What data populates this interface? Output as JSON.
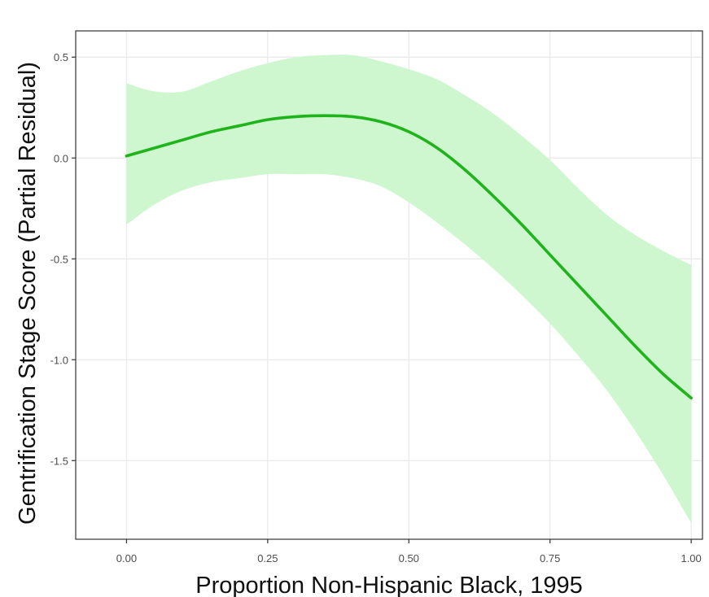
{
  "chart_data": {
    "type": "line",
    "xlabel": "Proportion Non-Hispanic Black, 1995",
    "ylabel": "Gentrification Stage Score (Partial Residual)",
    "xlim": [
      -0.09,
      1.02
    ],
    "ylim": [
      -1.89,
      0.63
    ],
    "x_ticks": [
      0.0,
      0.25,
      0.5,
      0.75,
      1.0
    ],
    "x_tick_labels": [
      "0.00",
      "0.25",
      "0.50",
      "0.75",
      "1.00"
    ],
    "y_ticks": [
      0.5,
      0.0,
      -0.5,
      -1.0,
      -1.5
    ],
    "y_tick_labels": [
      "0.5",
      "0.0",
      "-0.5",
      "-1.0",
      "-1.5"
    ],
    "grid": true,
    "legend": "none",
    "series": [
      {
        "x": [
          0.0,
          0.05,
          0.1,
          0.15,
          0.2,
          0.25,
          0.3,
          0.35,
          0.4,
          0.45,
          0.5,
          0.55,
          0.6,
          0.65,
          0.7,
          0.75,
          0.8,
          0.85,
          0.9,
          0.95,
          1.0
        ],
        "y": [
          0.01,
          0.05,
          0.09,
          0.13,
          0.16,
          0.19,
          0.205,
          0.21,
          0.205,
          0.18,
          0.13,
          0.05,
          -0.06,
          -0.19,
          -0.33,
          -0.48,
          -0.63,
          -0.78,
          -0.93,
          -1.07,
          -1.19
        ],
        "lower": [
          -0.33,
          -0.23,
          -0.16,
          -0.12,
          -0.1,
          -0.08,
          -0.08,
          -0.08,
          -0.1,
          -0.14,
          -0.22,
          -0.32,
          -0.43,
          -0.55,
          -0.68,
          -0.82,
          -0.98,
          -1.15,
          -1.35,
          -1.57,
          -1.81
        ],
        "upper": [
          0.37,
          0.33,
          0.33,
          0.38,
          0.43,
          0.47,
          0.5,
          0.51,
          0.51,
          0.48,
          0.44,
          0.39,
          0.31,
          0.22,
          0.11,
          -0.01,
          -0.15,
          -0.28,
          -0.38,
          -0.46,
          -0.53
        ]
      }
    ],
    "colors": {
      "line": "#1fb31c",
      "band": "#cff7cf",
      "grid": "#ebebeb",
      "panel_border": "#333333"
    }
  }
}
